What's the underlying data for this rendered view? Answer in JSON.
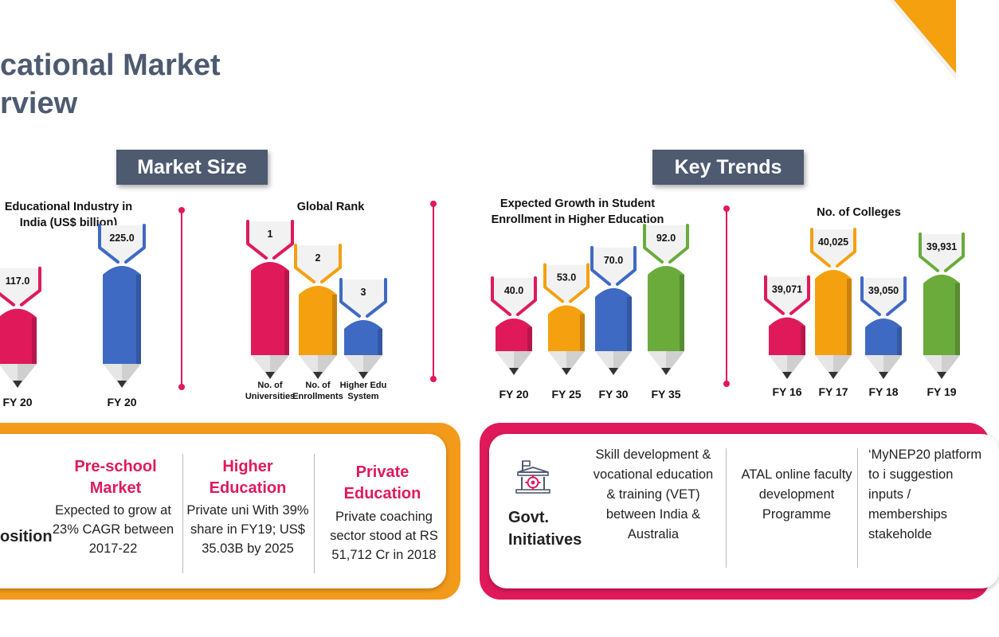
{
  "page": {
    "title_line1": "cational Market",
    "title_line2": "rview"
  },
  "sections": {
    "market_size": "Market Size",
    "key_trends": "Key Trends"
  },
  "colors": {
    "pink": "#e0195b",
    "orange": "#f5a00f",
    "blue": "#3f6ac4",
    "green": "#6aab3c",
    "header_bg": "#4d5a70"
  },
  "chart_data": [
    {
      "type": "bar",
      "title": "Educational Industry in India (US$ billion)",
      "categories": [
        "FY 20",
        "FY 20"
      ],
      "values": [
        117.0,
        225.0
      ],
      "value_labels": [
        "117.0",
        "225.0"
      ],
      "colors": [
        "#e0195b",
        "#3f6ac4"
      ]
    },
    {
      "type": "bar",
      "title": "Global Rank",
      "categories": [
        "No. of Universities",
        "No. of Enrollments",
        "Higher Edu System"
      ],
      "values": [
        1,
        2,
        3
      ],
      "value_labels": [
        "1",
        "2",
        "3"
      ],
      "colors": [
        "#e0195b",
        "#f5a00f",
        "#3f6ac4"
      ]
    },
    {
      "type": "bar",
      "title": "Expected Growth in Student Enrollment in Higher Education",
      "categories": [
        "FY 20",
        "FY 25",
        "FY 30",
        "FY 35"
      ],
      "values": [
        40.0,
        53.0,
        70.0,
        92.0
      ],
      "value_labels": [
        "40.0",
        "53.0",
        "70.0",
        "92.0"
      ],
      "colors": [
        "#e0195b",
        "#f5a00f",
        "#3f6ac4",
        "#6aab3c"
      ]
    },
    {
      "type": "bar",
      "title": "No. of Colleges",
      "categories": [
        "FY 16",
        "FY 17",
        "FY 18",
        "FY 19"
      ],
      "values": [
        39071,
        40025,
        39050,
        39931
      ],
      "value_labels": [
        "39,071",
        "40,025",
        "39,050",
        "39,931"
      ],
      "colors": [
        "#e0195b",
        "#f5a00f",
        "#3f6ac4",
        "#6aab3c"
      ]
    }
  ],
  "composition": {
    "label": "osition",
    "columns": [
      {
        "title": "Pre-school Market",
        "text": "Expected to grow at 23% CAGR between 2017-22"
      },
      {
        "title": "Higher Education",
        "text": "Private uni With 39% share in FY19; US$ 35.03B by 2025"
      },
      {
        "title": "Private Education",
        "text": "Private coaching sector stood at RS 51,712 Cr in 2018"
      }
    ]
  },
  "initiatives": {
    "label": "Govt. Initiatives",
    "icon": "government-building-gear-icon",
    "items": [
      "Skill development & vocational education & training (VET) between India & Australia",
      "ATAL online faculty development Programme",
      "‘MyNEP20 platform to i suggestion inputs / memberships stakeholde"
    ]
  }
}
